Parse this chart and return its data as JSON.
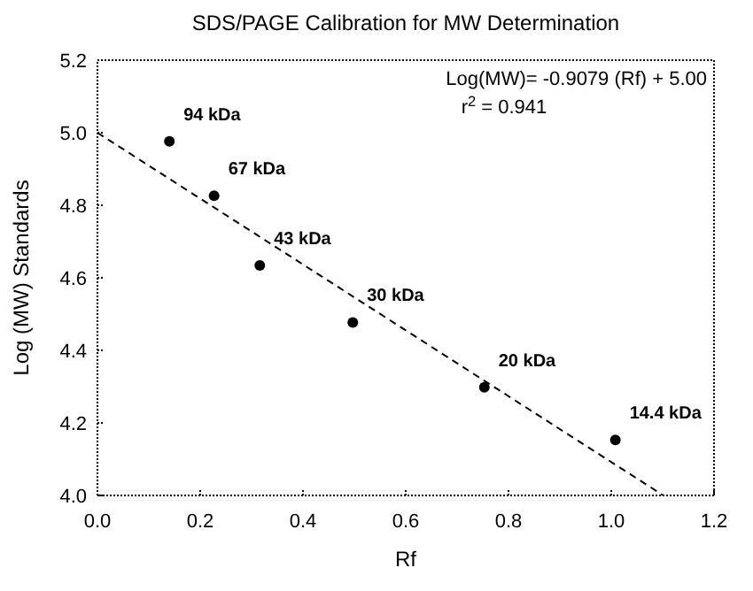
{
  "chart_data": {
    "type": "scatter",
    "title": "SDS/PAGE Calibration for MW Determination",
    "xlabel": "Rf",
    "ylabel": "Log (MW) Standards",
    "xlim": [
      0,
      1.2
    ],
    "xticks": [
      {
        "value": 0,
        "label": "0.0"
      },
      0.2,
      0.4,
      0.6,
      0.8,
      {
        "value": 1,
        "label": "1.0"
      },
      1.2
    ],
    "ylim": [
      4.0,
      5.2
    ],
    "yticks": [
      {
        "value": 4,
        "label": "4.0"
      },
      4.2,
      4.4,
      4.6,
      4.8,
      {
        "value": 5,
        "label": "5.0"
      },
      5.2
    ],
    "grid": false,
    "legend": false,
    "marker": "circle",
    "series": [
      {
        "color": "#000000",
        "x": [
          0.14,
          0.227,
          0.316,
          0.497,
          0.753,
          1.008
        ],
        "values": [
          4.976,
          4.826,
          4.634,
          4.477,
          4.298,
          4.153
        ]
      },
      {
        "type": "line",
        "color": "#000000",
        "line_style": "dashed",
        "marker": "none",
        "x": [
          0,
          1.1
        ],
        "values": [
          5.0,
          4.0013
        ]
      }
    ],
    "annotations": [
      {
        "text": "94 kDa",
        "x": 0.14,
        "y": 4.976
      },
      {
        "text": "67 kDa",
        "x": 0.227,
        "y": 4.826
      },
      {
        "text": "43 kDa",
        "x": 0.316,
        "y": 4.634
      },
      {
        "text": "30 kDa",
        "x": 0.497,
        "y": 4.477
      },
      {
        "text": "20 kDa",
        "x": 0.753,
        "y": 4.298
      },
      {
        "text": "14.4 kDa",
        "x": 1.008,
        "y": 4.153
      },
      "Log(MW)= -0.9079 (Rf) + 5.00",
      "r$^{2}$ = 0.941"
    ]
  }
}
